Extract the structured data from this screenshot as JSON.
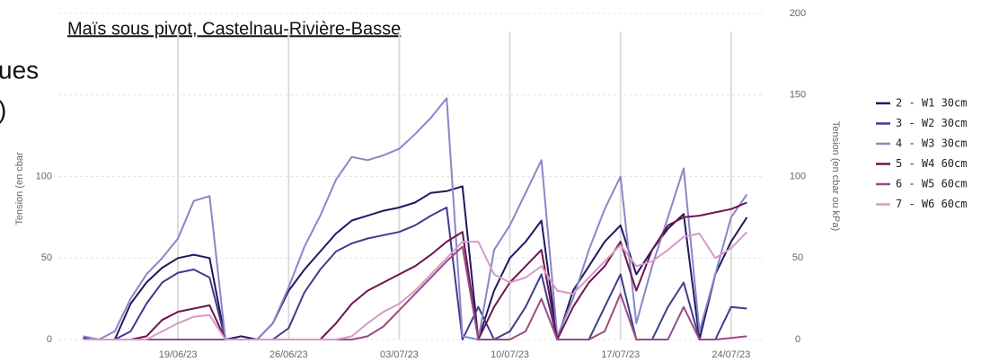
{
  "fragments": [
    "ues",
    ")"
  ],
  "chart_data": {
    "type": "line",
    "title": "Maïs sous pivot, Castelnau-Rivière-Basse",
    "ylabel": "Tension (en cbar",
    "y2label": "Tension (en cbar ou kPa)",
    "x": [
      "13/06/23",
      "14/06/23",
      "15/06/23",
      "16/06/23",
      "17/06/23",
      "18/06/23",
      "19/06/23",
      "20/06/23",
      "21/06/23",
      "22/06/23",
      "23/06/23",
      "24/06/23",
      "25/06/23",
      "26/06/23",
      "27/06/23",
      "28/06/23",
      "29/06/23",
      "30/06/23",
      "01/07/23",
      "02/07/23",
      "03/07/23",
      "04/07/23",
      "05/07/23",
      "06/07/23",
      "07/07/23",
      "08/07/23",
      "09/07/23",
      "10/07/23",
      "11/07/23",
      "12/07/23",
      "13/07/23",
      "14/07/23",
      "15/07/23",
      "16/07/23",
      "17/07/23",
      "18/07/23",
      "19/07/23",
      "20/07/23",
      "21/07/23",
      "22/07/23",
      "23/07/23",
      "24/07/23",
      "25/07/23"
    ],
    "xlim": [
      "12/06/23",
      "26/07/23"
    ],
    "xticks": [
      "19/06/23",
      "26/06/23",
      "03/07/23",
      "10/07/23",
      "17/07/23",
      "24/07/23"
    ],
    "ylim": [
      0,
      200
    ],
    "yticks": [
      0,
      50,
      100
    ],
    "y2lim": [
      0,
      200
    ],
    "y2ticks": [
      0,
      50,
      100,
      150,
      200
    ],
    "grid": true,
    "legend": "right",
    "series": [
      {
        "name": "2 - W1 30cm",
        "color": "#1f1a5e",
        "values": [
          1,
          0,
          0,
          22,
          35,
          44,
          50,
          52,
          50,
          0,
          2,
          0,
          10,
          30,
          43,
          54,
          65,
          73,
          76,
          79,
          81,
          84,
          90,
          91,
          94,
          0,
          30,
          50,
          60,
          73,
          0,
          30,
          45,
          60,
          70,
          40,
          55,
          68,
          77,
          0,
          40,
          60,
          75
        ]
      },
      {
        "name": "3 - W2 30cm",
        "color": "#3f3c8e",
        "values": [
          0,
          0,
          0,
          5,
          22,
          35,
          41,
          43,
          38,
          0,
          0,
          0,
          0,
          7,
          29,
          43,
          54,
          59,
          62,
          64,
          66,
          70,
          76,
          81,
          0,
          20,
          0,
          5,
          20,
          40,
          0,
          0,
          0,
          20,
          40,
          0,
          0,
          20,
          35,
          0,
          0,
          20,
          19
        ]
      },
      {
        "name": "4 - W3 30cm",
        "color": "#8a86c8",
        "values": [
          2,
          0,
          5,
          25,
          40,
          50,
          62,
          85,
          88,
          0,
          0,
          0,
          10,
          32,
          57,
          76,
          98,
          112,
          110,
          113,
          117,
          126,
          136,
          148,
          2,
          0,
          55,
          70,
          90,
          110,
          2,
          25,
          55,
          80,
          100,
          10,
          45,
          75,
          105,
          5,
          40,
          75,
          89
        ]
      },
      {
        "name": "5 - W4 60cm",
        "color": "#6e1450",
        "values": [
          0,
          0,
          0,
          0,
          2,
          12,
          17,
          19,
          21,
          0,
          0,
          0,
          0,
          0,
          0,
          0,
          10,
          22,
          30,
          35,
          40,
          45,
          52,
          60,
          66,
          0,
          20,
          35,
          45,
          55,
          0,
          20,
          35,
          45,
          60,
          30,
          55,
          70,
          75,
          76,
          78,
          80,
          84
        ]
      },
      {
        "name": "6 - W5 60cm",
        "color": "#9a4a86",
        "values": [
          0,
          0,
          0,
          0,
          0,
          0,
          0,
          0,
          0,
          0,
          0,
          0,
          0,
          0,
          0,
          0,
          0,
          0,
          2,
          8,
          18,
          28,
          38,
          48,
          57,
          0,
          0,
          0,
          5,
          25,
          0,
          0,
          0,
          5,
          28,
          0,
          0,
          0,
          20,
          0,
          0,
          1,
          2
        ]
      },
      {
        "name": "7 - W6 60cm",
        "color": "#d79ac6",
        "values": [
          0,
          0,
          0,
          0,
          0,
          5,
          10,
          14,
          15,
          0,
          0,
          0,
          0,
          0,
          0,
          0,
          0,
          2,
          10,
          17,
          22,
          30,
          40,
          50,
          60,
          60,
          40,
          35,
          38,
          45,
          30,
          28,
          38,
          48,
          58,
          45,
          48,
          55,
          63,
          65,
          50,
          56,
          66
        ]
      }
    ]
  }
}
